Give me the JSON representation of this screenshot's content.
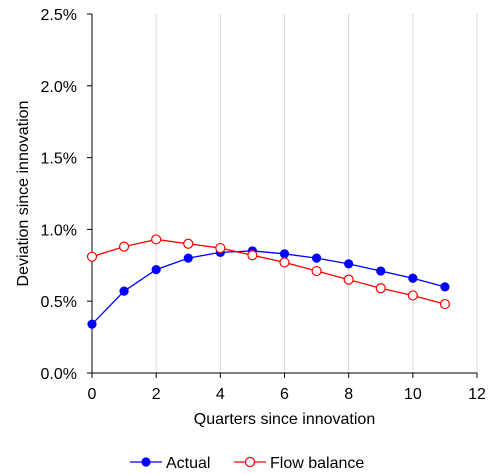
{
  "chart_data": {
    "type": "line",
    "title": "",
    "xlabel": "Quarters since innovation",
    "ylabel": "Deviation since innovation",
    "xlim": [
      0,
      12
    ],
    "ylim": [
      0,
      2.5
    ],
    "x_ticks": [
      0,
      2,
      4,
      6,
      8,
      10,
      12
    ],
    "x_tick_labels": [
      "0",
      "2",
      "4",
      "6",
      "8",
      "10",
      "12"
    ],
    "y_ticks": [
      0,
      0.5,
      1.0,
      1.5,
      2.0,
      2.5
    ],
    "y_tick_labels": [
      "0.0%",
      "0.5%",
      "1.0%",
      "1.5%",
      "2.0%",
      "2.5%"
    ],
    "grid": "vertical",
    "legend_position": "bottom",
    "x": [
      0,
      1,
      2,
      3,
      4,
      5,
      6,
      7,
      8,
      9,
      10,
      11
    ],
    "series": [
      {
        "name": "Actual",
        "color": "#0000ff",
        "marker": "filled-circle",
        "values": [
          0.34,
          0.57,
          0.72,
          0.8,
          0.84,
          0.85,
          0.83,
          0.8,
          0.76,
          0.71,
          0.66,
          0.6
        ]
      },
      {
        "name": "Flow balance",
        "color": "#ff0000",
        "marker": "open-circle",
        "values": [
          0.81,
          0.88,
          0.93,
          0.9,
          0.87,
          0.82,
          0.77,
          0.71,
          0.65,
          0.59,
          0.54,
          0.48
        ]
      }
    ]
  }
}
